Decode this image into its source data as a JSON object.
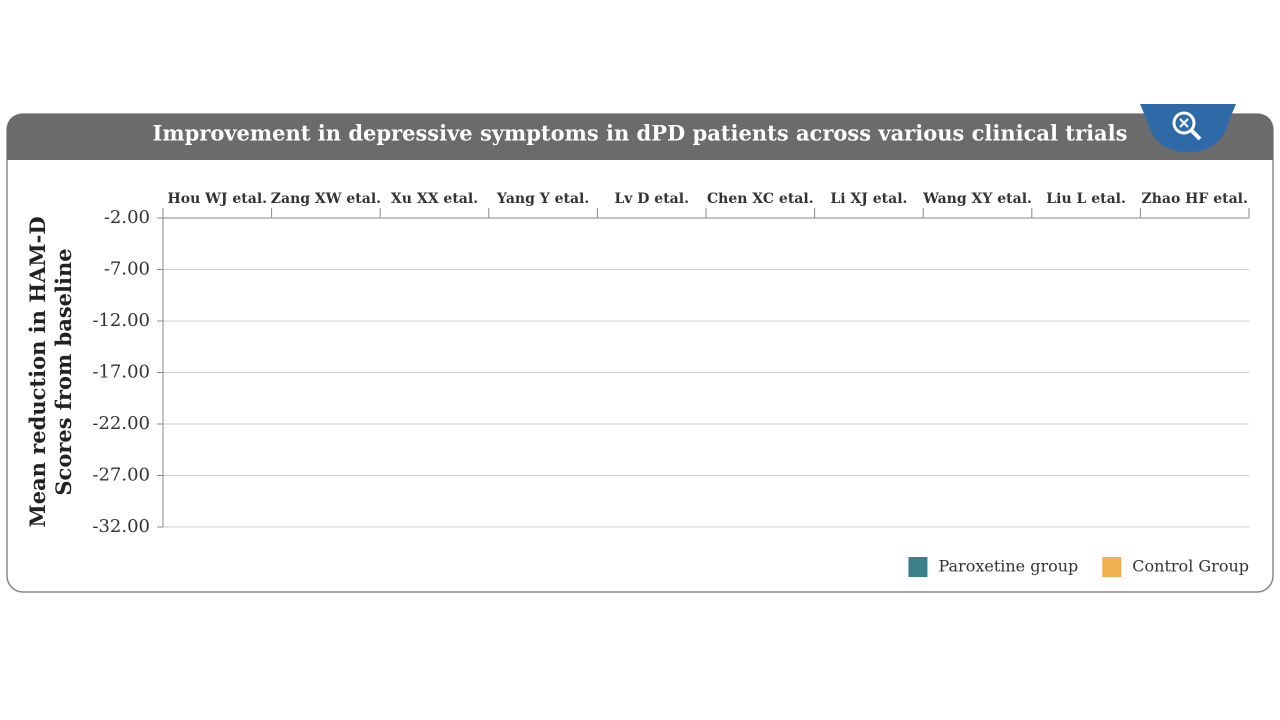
{
  "chart_data": {
    "type": "bar",
    "title": "Improvement in depressive symptoms in dPD patients across various clinical trials",
    "y_label": "Mean reduction in HAM-D Scores from baseline",
    "categories": [
      "Hou WJ etal.",
      "Zang XW etal.",
      "Xu XX etal.",
      "Yang Y etal.",
      "Lv D etal.",
      "Chen XC etal.",
      "Li XJ etal.",
      "Wang XY etal.",
      "Liu L etal.",
      "Zhao HF etal."
    ],
    "series": [
      {
        "name": "Paroxetine group",
        "color": "#3a7f8a",
        "values": [
          null,
          null,
          null,
          null,
          null,
          null,
          null,
          null,
          null,
          null
        ]
      },
      {
        "name": "Control Group",
        "color": "#f0b050",
        "values": [
          null,
          null,
          null,
          null,
          null,
          null,
          null,
          null,
          null,
          null
        ]
      }
    ],
    "ylim": [
      -2,
      -32
    ],
    "yticks": [
      {
        "value": -2,
        "label": "-2.00"
      },
      {
        "value": -7,
        "label": "-7.00"
      },
      {
        "value": -12,
        "label": "-12.00"
      },
      {
        "value": -17,
        "label": "-17.00"
      },
      {
        "value": -22,
        "label": "-22.00"
      },
      {
        "value": -27,
        "label": "-27.00"
      },
      {
        "value": -32,
        "label": "-32.00"
      }
    ],
    "grid": true,
    "legend": "bottom-right"
  }
}
